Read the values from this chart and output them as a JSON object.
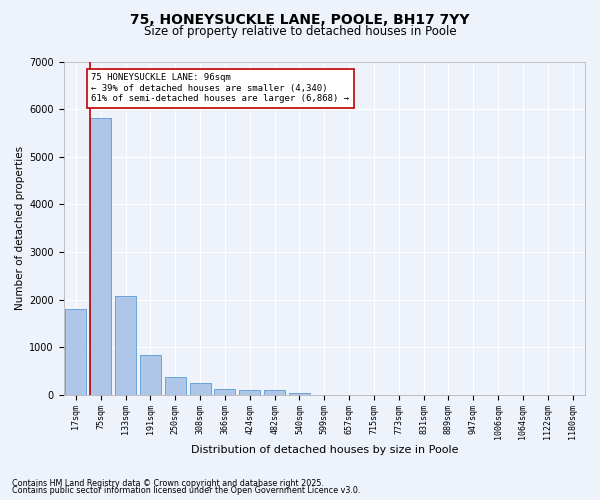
{
  "title_line1": "75, HONEYSUCKLE LANE, POOLE, BH17 7YY",
  "title_line2": "Size of property relative to detached houses in Poole",
  "xlabel": "Distribution of detached houses by size in Poole",
  "ylabel": "Number of detached properties",
  "categories": [
    "17sqm",
    "75sqm",
    "133sqm",
    "191sqm",
    "250sqm",
    "308sqm",
    "366sqm",
    "424sqm",
    "482sqm",
    "540sqm",
    "599sqm",
    "657sqm",
    "715sqm",
    "773sqm",
    "831sqm",
    "889sqm",
    "947sqm",
    "1006sqm",
    "1064sqm",
    "1122sqm",
    "1180sqm"
  ],
  "values": [
    1800,
    5820,
    2080,
    840,
    370,
    240,
    130,
    90,
    90,
    40,
    0,
    0,
    0,
    0,
    0,
    0,
    0,
    0,
    0,
    0,
    0
  ],
  "bar_color": "#aec6e8",
  "bar_edge_color": "#5b9bd5",
  "highlight_bar_index": 1,
  "highlight_color": "#c00000",
  "ylim": [
    0,
    7000
  ],
  "yticks": [
    0,
    1000,
    2000,
    3000,
    4000,
    5000,
    6000,
    7000
  ],
  "annotation_text": "75 HONEYSUCKLE LANE: 96sqm\n← 39% of detached houses are smaller (4,340)\n61% of semi-detached houses are larger (6,868) →",
  "annotation_box_color": "#ffffff",
  "annotation_box_edge_color": "#c00000",
  "background_color": "#eef2fa",
  "grid_color": "#ffffff",
  "footnote_line1": "Contains HM Land Registry data © Crown copyright and database right 2025.",
  "footnote_line2": "Contains public sector information licensed under the Open Government Licence v3.0."
}
